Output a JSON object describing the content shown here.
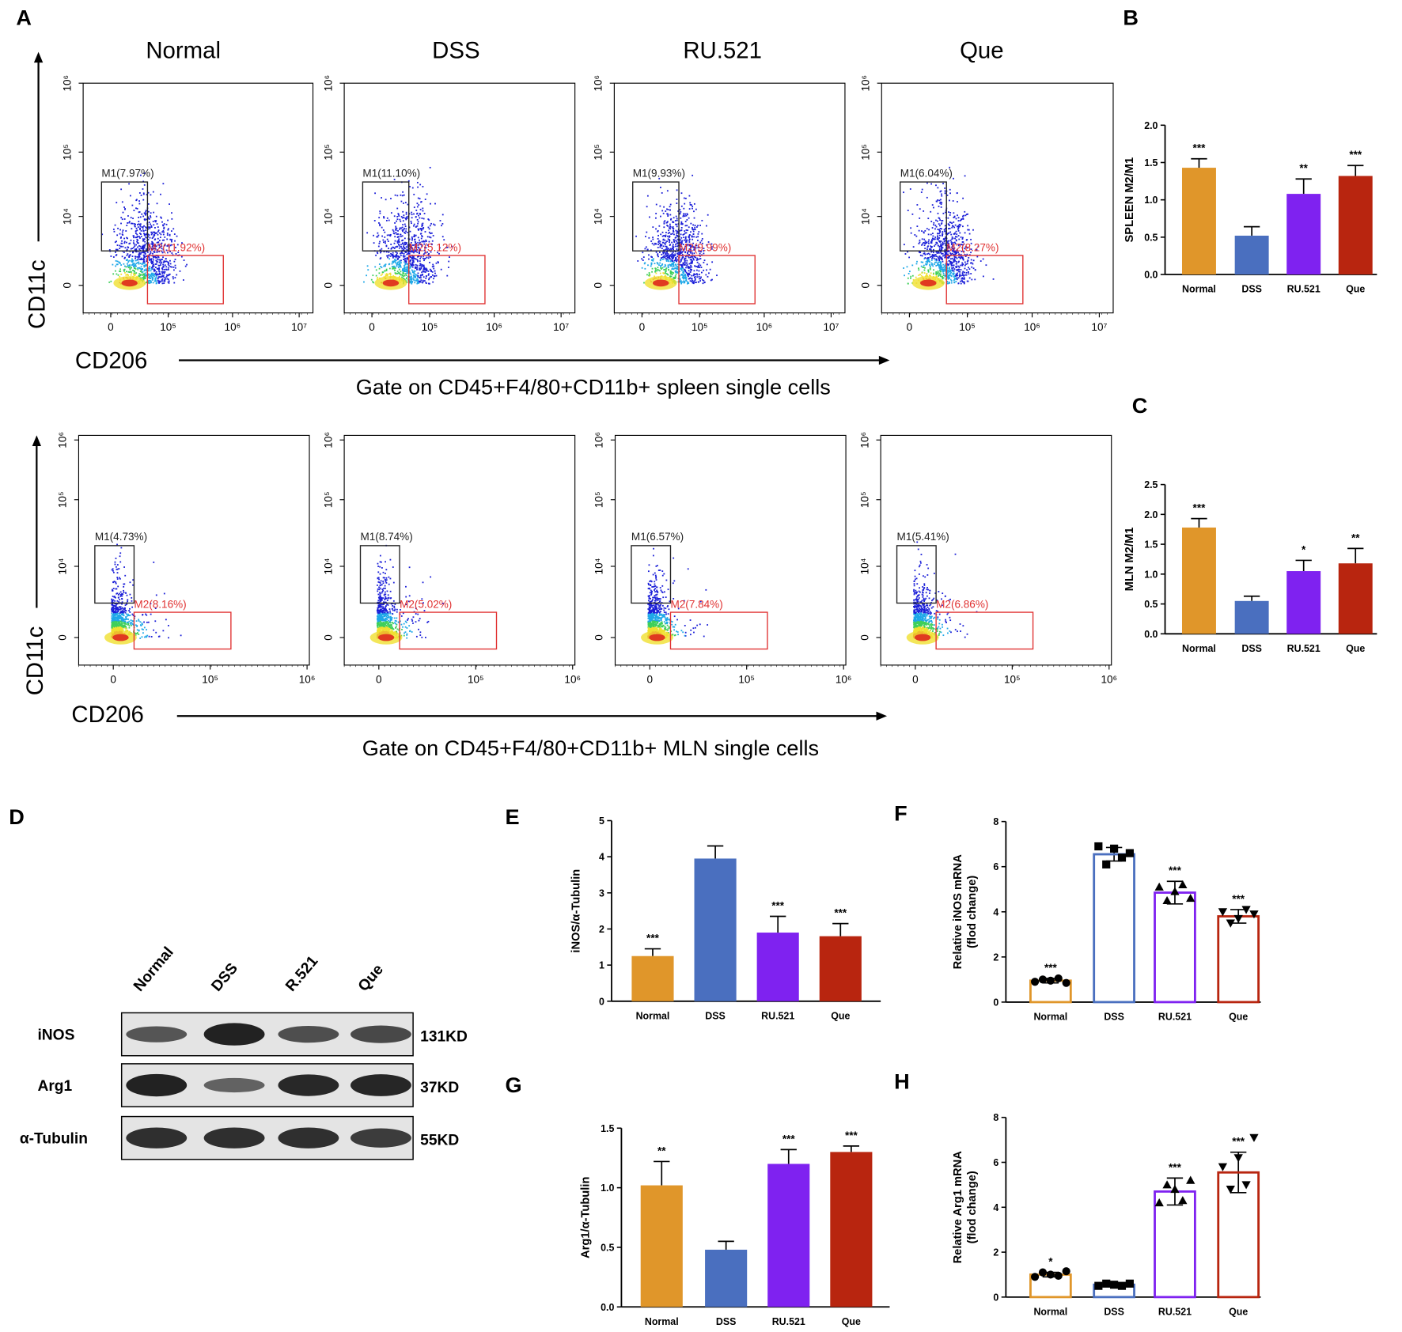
{
  "panel_labels": {
    "A": "A",
    "B": "B",
    "C": "C",
    "D": "D",
    "E": "E",
    "F": "F",
    "G": "G",
    "H": "H"
  },
  "flow": {
    "conditions": [
      "Normal",
      "DSS",
      "RU.521",
      "Que"
    ],
    "y_axis_label": "CD11c",
    "x_axis_label": "CD206",
    "top_ticks_y": [
      "10⁶",
      "10⁵",
      "10⁴",
      "0"
    ],
    "top_ticks_x": [
      "0",
      "10⁵",
      "10⁶",
      "10⁷"
    ],
    "bottom_ticks_y": [
      "10⁶",
      "10⁵",
      "10⁴",
      "0"
    ],
    "bottom_ticks_x": [
      "0",
      "10⁵",
      "10⁶"
    ],
    "spleen_gate_text": "Gate on CD45+F4/80+CD11b+ spleen single cells",
    "mln_gate_text": "Gate on CD45+F4/80+CD11b+ MLN single cells",
    "spleen": [
      {
        "m1": "M1(7.97%)",
        "m2": "M2(11.92%)"
      },
      {
        "m1": "M1(11.10%)",
        "m2": "M2(5.12%)"
      },
      {
        "m1": "M1(9.93%)",
        "m2": "M2(9.99%)"
      },
      {
        "m1": "M1(6.04%)",
        "m2": "M2(8.27%)"
      }
    ],
    "mln": [
      {
        "m1": "M1(4.73%)",
        "m2": "M2(8.16%)"
      },
      {
        "m1": "M1(8.74%)",
        "m2": "M2(5.02%)"
      },
      {
        "m1": "M1(6.57%)",
        "m2": "M2(7.84%)"
      },
      {
        "m1": "M1(5.41%)",
        "m2": "M2(6.86%)"
      }
    ]
  },
  "western": {
    "lanes": [
      "Normal",
      "DSS",
      "R.521",
      "Que"
    ],
    "rows": [
      {
        "name": "iNOS",
        "size": "131KD",
        "intensity": [
          0.55,
          0.95,
          0.6,
          0.65
        ]
      },
      {
        "name": "Arg1",
        "size": "37KD",
        "intensity": [
          0.95,
          0.45,
          0.9,
          0.92
        ]
      },
      {
        "name": "α-Tubulin",
        "size": "55KD",
        "intensity": [
          0.85,
          0.85,
          0.85,
          0.75
        ]
      }
    ]
  },
  "colors": {
    "Normal": "#e0962a",
    "DSS": "#4a6fbf",
    "RU.521": "#7f22f0",
    "Que": "#b8250f"
  },
  "chart_data": [
    {
      "id": "B",
      "type": "bar",
      "ylabel": "SPLEEN M2/M1",
      "categories": [
        "Normal",
        "DSS",
        "RU.521",
        "Que"
      ],
      "values": [
        1.43,
        0.52,
        1.08,
        1.32
      ],
      "errors": [
        0.12,
        0.12,
        0.2,
        0.14
      ],
      "significance": [
        "***",
        "",
        "**",
        "***"
      ],
      "ylim": [
        0,
        2.0
      ],
      "yticks": [
        "0.0",
        "0.5",
        "1.0",
        "1.5",
        "2.0"
      ]
    },
    {
      "id": "C",
      "type": "bar",
      "ylabel": "MLN M2/M1",
      "categories": [
        "Normal",
        "DSS",
        "RU.521",
        "Que"
      ],
      "values": [
        1.78,
        0.55,
        1.05,
        1.18
      ],
      "errors": [
        0.15,
        0.08,
        0.18,
        0.25
      ],
      "significance": [
        "***",
        "",
        "*",
        "**"
      ],
      "ylim": [
        0,
        2.5
      ],
      "yticks": [
        "0.0",
        "0.5",
        "1.0",
        "1.5",
        "2.0",
        "2.5"
      ]
    },
    {
      "id": "E",
      "type": "bar",
      "ylabel": "iNOS/α-Tubulin",
      "categories": [
        "Normal",
        "DSS",
        "RU.521",
        "Que"
      ],
      "values": [
        1.25,
        3.95,
        1.9,
        1.8
      ],
      "errors": [
        0.2,
        0.35,
        0.45,
        0.35
      ],
      "significance": [
        "***",
        "",
        "***",
        "***"
      ],
      "ylim": [
        0,
        5
      ],
      "yticks": [
        "0",
        "1",
        "2",
        "3",
        "4",
        "5"
      ]
    },
    {
      "id": "F",
      "type": "bar",
      "open": true,
      "ylabel": "Relative iNOS mRNA",
      "ylabel2": "(flod change)",
      "categories": [
        "Normal",
        "DSS",
        "RU.521",
        "Que"
      ],
      "values": [
        0.95,
        6.55,
        4.85,
        3.8
      ],
      "errors": [
        0.1,
        0.3,
        0.5,
        0.3
      ],
      "significance": [
        "***",
        "",
        "***",
        "***"
      ],
      "points": [
        [
          0.9,
          1.0,
          0.95,
          1.05,
          0.85
        ],
        [
          6.9,
          6.1,
          6.8,
          6.4,
          6.6
        ],
        [
          5.1,
          4.5,
          4.9,
          5.2,
          4.6
        ],
        [
          4.0,
          3.5,
          3.7,
          4.1,
          3.9
        ]
      ],
      "ylim": [
        0,
        8
      ],
      "yticks": [
        "0",
        "2",
        "4",
        "6",
        "8"
      ]
    },
    {
      "id": "G",
      "type": "bar",
      "ylabel": "Arg1/α-Tubulin",
      "categories": [
        "Normal",
        "DSS",
        "RU.521",
        "Que"
      ],
      "values": [
        1.02,
        0.48,
        1.2,
        1.3
      ],
      "errors": [
        0.2,
        0.07,
        0.12,
        0.05
      ],
      "significance": [
        "**",
        "",
        "***",
        "***"
      ],
      "ylim": [
        0,
        1.5
      ],
      "yticks": [
        "0.0",
        "0.5",
        "1.0",
        "1.5"
      ]
    },
    {
      "id": "H",
      "type": "bar",
      "open": true,
      "ylabel": "Relative Arg1 mRNA",
      "ylabel2": "(flod change)",
      "categories": [
        "Normal",
        "DSS",
        "RU.521",
        "Que"
      ],
      "values": [
        1.0,
        0.55,
        4.7,
        5.55
      ],
      "errors": [
        0.1,
        0.05,
        0.6,
        0.9
      ],
      "significance": [
        "*",
        "",
        "***",
        "***"
      ],
      "points": [
        [
          0.9,
          1.1,
          1.0,
          0.95,
          1.15
        ],
        [
          0.5,
          0.6,
          0.55,
          0.5,
          0.6
        ],
        [
          4.2,
          5.0,
          4.8,
          4.3,
          5.2
        ],
        [
          5.8,
          4.8,
          6.2,
          5.0,
          7.1
        ]
      ],
      "ylim": [
        0,
        8
      ],
      "yticks": [
        "0",
        "2",
        "4",
        "6",
        "8"
      ]
    }
  ]
}
